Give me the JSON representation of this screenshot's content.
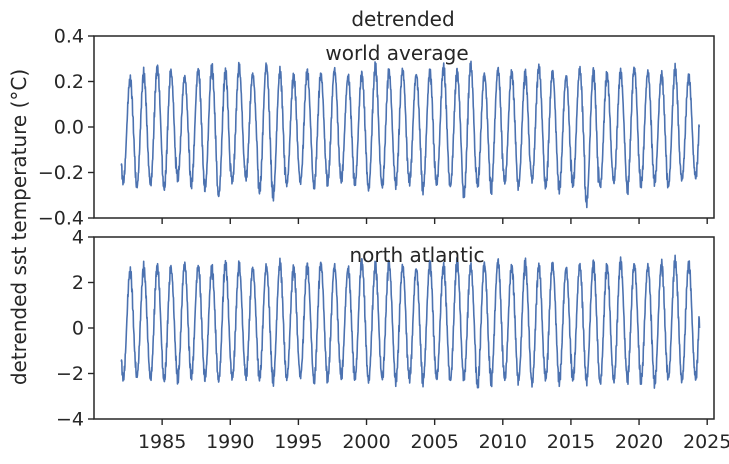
{
  "figure": {
    "suptitle": "detrended",
    "ylabel": "detrended sst temperature (°C)"
  },
  "chart_data": [
    {
      "type": "line",
      "annotation": "world average",
      "ylim": [
        -0.4,
        0.4
      ],
      "yticks": [
        -0.4,
        -0.2,
        0.0,
        0.2,
        0.4
      ],
      "ytick_labels": [
        "−0.4",
        "−0.2",
        "0.0",
        "0.2",
        "0.4"
      ],
      "xlim": [
        1980.0,
        2025.5
      ],
      "xticks": [
        1985,
        1990,
        1995,
        2000,
        2005,
        2010,
        2015,
        2020,
        2025
      ],
      "xtick_labels_visible": false,
      "grid": false,
      "color": "#4c72b0",
      "x_start": 1982.0,
      "x_end": 2024.45,
      "peaks": [
        0.21,
        0.23,
        0.26,
        0.24,
        0.22,
        0.25,
        0.26,
        0.24,
        0.26,
        0.23,
        0.27,
        0.24,
        0.22,
        0.24,
        0.23,
        0.25,
        0.22,
        0.23,
        0.26,
        0.24,
        0.25,
        0.23,
        0.24,
        0.26,
        0.24,
        0.27,
        0.23,
        0.25,
        0.24,
        0.23,
        0.26,
        0.24,
        0.22,
        0.25,
        0.24,
        0.23,
        0.24,
        0.26,
        0.24,
        0.23,
        0.25,
        0.22,
        0.21
      ],
      "troughs": [
        -0.24,
        -0.26,
        -0.25,
        -0.27,
        -0.22,
        -0.25,
        -0.27,
        -0.3,
        -0.24,
        -0.22,
        -0.28,
        -0.3,
        -0.25,
        -0.24,
        -0.26,
        -0.24,
        -0.23,
        -0.25,
        -0.27,
        -0.26,
        -0.25,
        -0.24,
        -0.27,
        -0.25,
        -0.26,
        -0.3,
        -0.25,
        -0.27,
        -0.24,
        -0.26,
        -0.23,
        -0.26,
        -0.27,
        -0.25,
        -0.33,
        -0.26,
        -0.24,
        -0.27,
        -0.25,
        -0.24,
        -0.26,
        -0.23,
        -0.22
      ]
    },
    {
      "type": "line",
      "annotation": "north atlantic",
      "ylim": [
        -4,
        4
      ],
      "yticks": [
        -4,
        -2,
        0,
        2,
        4
      ],
      "ytick_labels": [
        "−4",
        "−2",
        "0",
        "2",
        "4"
      ],
      "xlim": [
        1980.0,
        2025.5
      ],
      "xticks": [
        1985,
        1990,
        1995,
        2000,
        2005,
        2010,
        2015,
        2020,
        2025
      ],
      "xtick_labels": [
        "1985",
        "1990",
        "1995",
        "2000",
        "2005",
        "2010",
        "2015",
        "2020",
        "2025"
      ],
      "grid": false,
      "color": "#4c72b0",
      "x_start": 1982.0,
      "x_end": 2024.45,
      "peaks": [
        2.5,
        2.6,
        2.7,
        2.6,
        2.8,
        2.7,
        2.6,
        2.8,
        2.7,
        2.6,
        2.7,
        2.8,
        2.6,
        2.7,
        2.8,
        2.7,
        2.6,
        2.9,
        2.7,
        2.8,
        2.7,
        2.6,
        2.8,
        2.7,
        2.9,
        2.7,
        2.8,
        2.9,
        2.7,
        2.8,
        2.7,
        2.8,
        2.6,
        2.7,
        2.8,
        2.7,
        2.9,
        2.8,
        2.7,
        2.8,
        2.9,
        2.8,
        2.9
      ],
      "troughs": [
        -2.2,
        -2.1,
        -2.2,
        -2.3,
        -2.2,
        -2.1,
        -2.2,
        -2.3,
        -2.2,
        -2.1,
        -2.2,
        -2.3,
        -2.2,
        -2.1,
        -2.3,
        -2.2,
        -2.1,
        -2.2,
        -2.3,
        -2.2,
        -2.3,
        -2.2,
        -2.3,
        -2.2,
        -2.3,
        -2.2,
        -2.5,
        -2.3,
        -2.2,
        -2.3,
        -2.4,
        -2.2,
        -2.3,
        -2.2,
        -2.3,
        -2.4,
        -2.3,
        -2.2,
        -2.3,
        -2.4,
        -2.2,
        -2.3,
        -2.2
      ]
    }
  ]
}
